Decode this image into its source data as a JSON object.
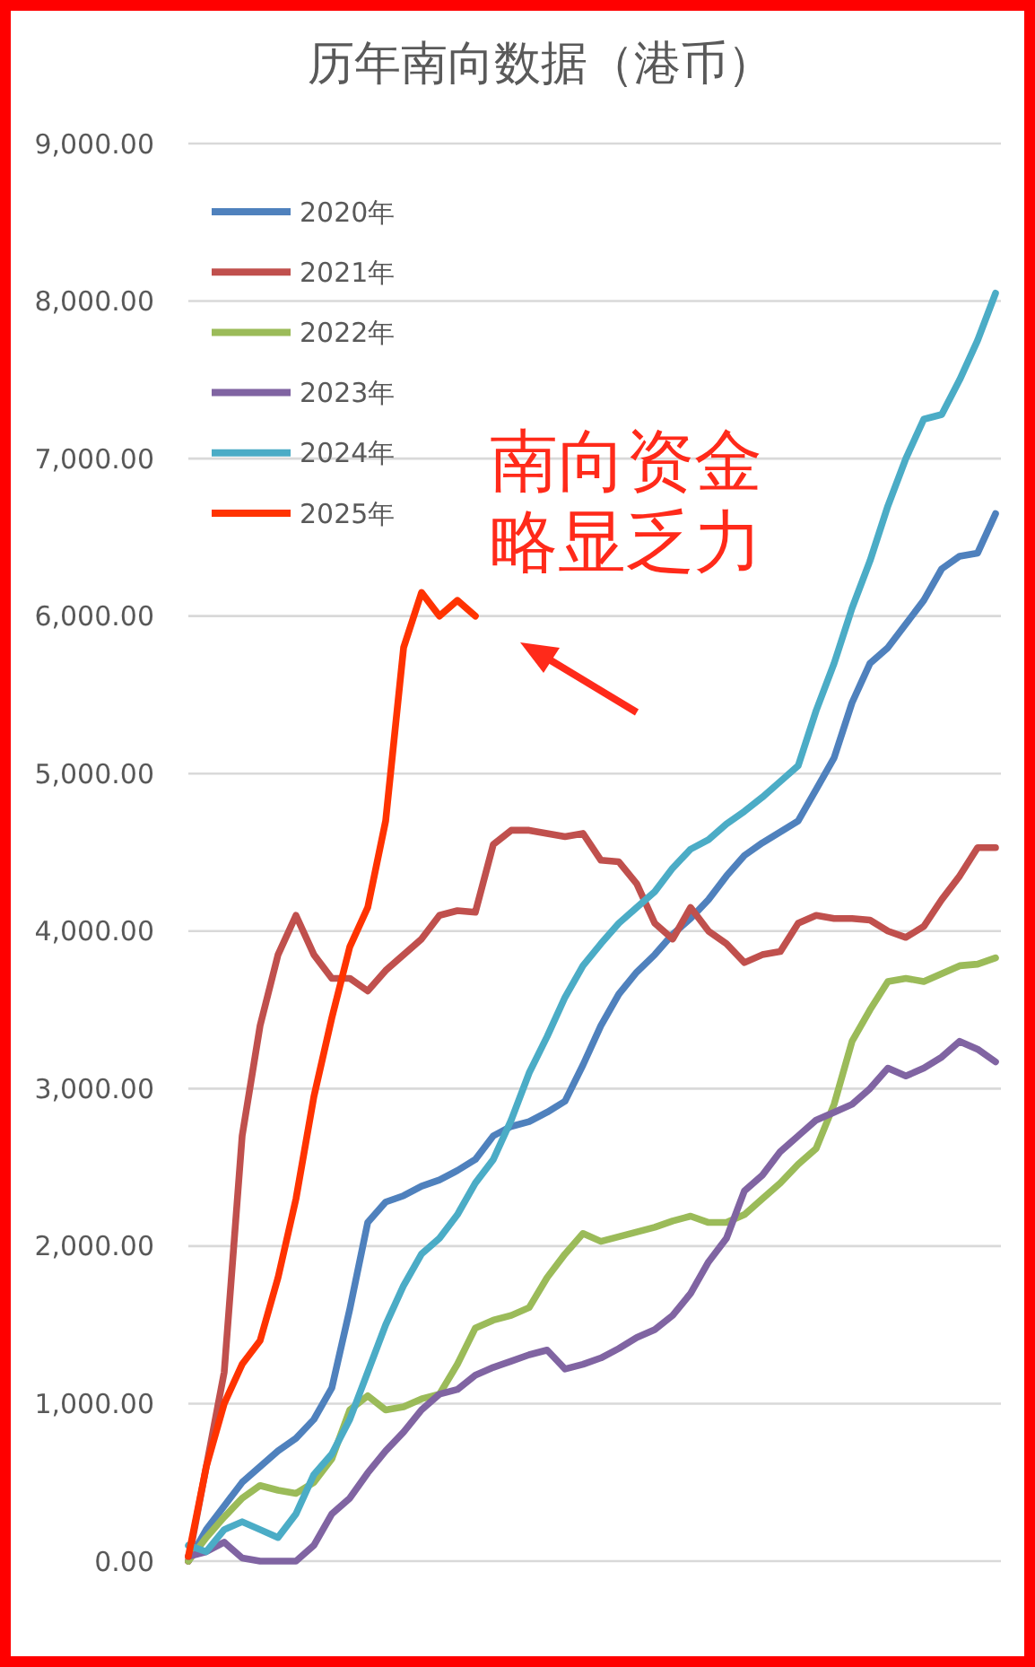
{
  "chart_data": {
    "type": "line",
    "title": "历年南向数据（港币）",
    "categories": [
      null,
      null,
      null,
      null,
      null,
      null,
      null,
      null,
      null,
      null,
      null,
      null,
      null,
      null,
      null,
      null,
      null,
      null,
      null,
      null,
      null,
      null,
      null,
      null,
      null,
      null,
      null,
      null,
      null,
      null,
      null,
      null,
      null,
      null,
      null,
      null,
      null,
      null,
      null,
      null,
      null,
      null,
      null,
      null,
      null,
      null
    ],
    "series": [
      {
        "name": "2020年",
        "color": "#4f81bd",
        "values": [
          0,
          200,
          350,
          500,
          600,
          700,
          780,
          900,
          1100,
          1600,
          2150,
          2280,
          2320,
          2380,
          2420,
          2480,
          2550,
          2700,
          2760,
          2790,
          2850,
          2920,
          3150,
          3400,
          3600,
          3740,
          3850,
          3980,
          4080,
          4200,
          4350,
          4480,
          4560,
          4630,
          4700,
          4900,
          5100,
          5450,
          5700,
          5800,
          5950,
          6100,
          6300,
          6380,
          6400,
          6650
        ]
      },
      {
        "name": "2021年",
        "color": "#c0504d",
        "values": [
          0,
          600,
          1200,
          2700,
          3400,
          3850,
          4100,
          3850,
          3700,
          3700,
          3620,
          3750,
          3850,
          3950,
          4100,
          4130,
          4120,
          4550,
          4640,
          4640,
          4620,
          4600,
          4620,
          4450,
          4440,
          4300,
          4050,
          3950,
          4150,
          4000,
          3920,
          3800,
          3850,
          3870,
          4050,
          4100,
          4080,
          4080,
          4070,
          4000,
          3960,
          4030,
          4200,
          4350,
          4530,
          4530
        ]
      },
      {
        "name": "2022年",
        "color": "#9bbb59",
        "values": [
          0,
          150,
          280,
          400,
          480,
          450,
          430,
          500,
          650,
          960,
          1050,
          960,
          980,
          1030,
          1060,
          1250,
          1480,
          1530,
          1560,
          1610,
          1800,
          1950,
          2080,
          2030,
          2060,
          2090,
          2120,
          2160,
          2190,
          2150,
          2150,
          2200,
          2300,
          2400,
          2520,
          2620,
          2900,
          3300,
          3500,
          3680,
          3700,
          3680,
          3730,
          3780,
          3790,
          3830
        ]
      },
      {
        "name": "2023年",
        "color": "#8064a2",
        "values": [
          30,
          60,
          120,
          20,
          0,
          0,
          0,
          100,
          300,
          400,
          560,
          700,
          820,
          960,
          1060,
          1090,
          1180,
          1230,
          1270,
          1310,
          1340,
          1220,
          1250,
          1290,
          1350,
          1420,
          1470,
          1560,
          1700,
          1900,
          2050,
          2350,
          2450,
          2600,
          2700,
          2800,
          2850,
          2900,
          3000,
          3130,
          3080,
          3130,
          3200,
          3300,
          3250,
          3170
        ]
      },
      {
        "name": "2024年",
        "color": "#4bacc6",
        "values": [
          100,
          60,
          200,
          250,
          200,
          150,
          300,
          550,
          680,
          900,
          1200,
          1500,
          1750,
          1950,
          2050,
          2200,
          2400,
          2550,
          2800,
          3100,
          3330,
          3580,
          3780,
          3920,
          4050,
          4150,
          4250,
          4400,
          4520,
          4580,
          4680,
          4760,
          4850,
          4950,
          5050,
          5400,
          5700,
          6050,
          6350,
          6700,
          7000,
          7250,
          7280,
          7500,
          7750,
          8050
        ]
      },
      {
        "name": "2025年",
        "color": "#ff3300",
        "values": [
          30,
          600,
          1000,
          1250,
          1400,
          1800,
          2300,
          2950,
          3450,
          3900,
          4150,
          4700,
          5800,
          6150,
          6000,
          6100,
          6000,
          null,
          null,
          null,
          null,
          null,
          null,
          null,
          null,
          null,
          null,
          null,
          null,
          null,
          null,
          null,
          null,
          null,
          null,
          null,
          null,
          null,
          null,
          null,
          null,
          null,
          null,
          null,
          null,
          null
        ]
      }
    ],
    "ylim": [
      0,
      9000
    ],
    "yticks": [
      {
        "value": 0,
        "label": "0.00"
      },
      {
        "value": 1000,
        "label": "1,000.00"
      },
      {
        "value": 2000,
        "label": "2,000.00"
      },
      {
        "value": 3000,
        "label": "3,000.00"
      },
      {
        "value": 4000,
        "label": "4,000.00"
      },
      {
        "value": 5000,
        "label": "5,000.00"
      },
      {
        "value": 6000,
        "label": "6,000.00"
      },
      {
        "value": 7000,
        "label": "7,000.00"
      },
      {
        "value": 8000,
        "label": "8,000.00"
      },
      {
        "value": 9000,
        "label": "9,000.00"
      }
    ],
    "grid": "y",
    "legend": "top left",
    "tick_labels": "y",
    "marker": "none",
    "line_style": "solid",
    "annotations": [
      "南向资金略显乏力"
    ]
  }
}
